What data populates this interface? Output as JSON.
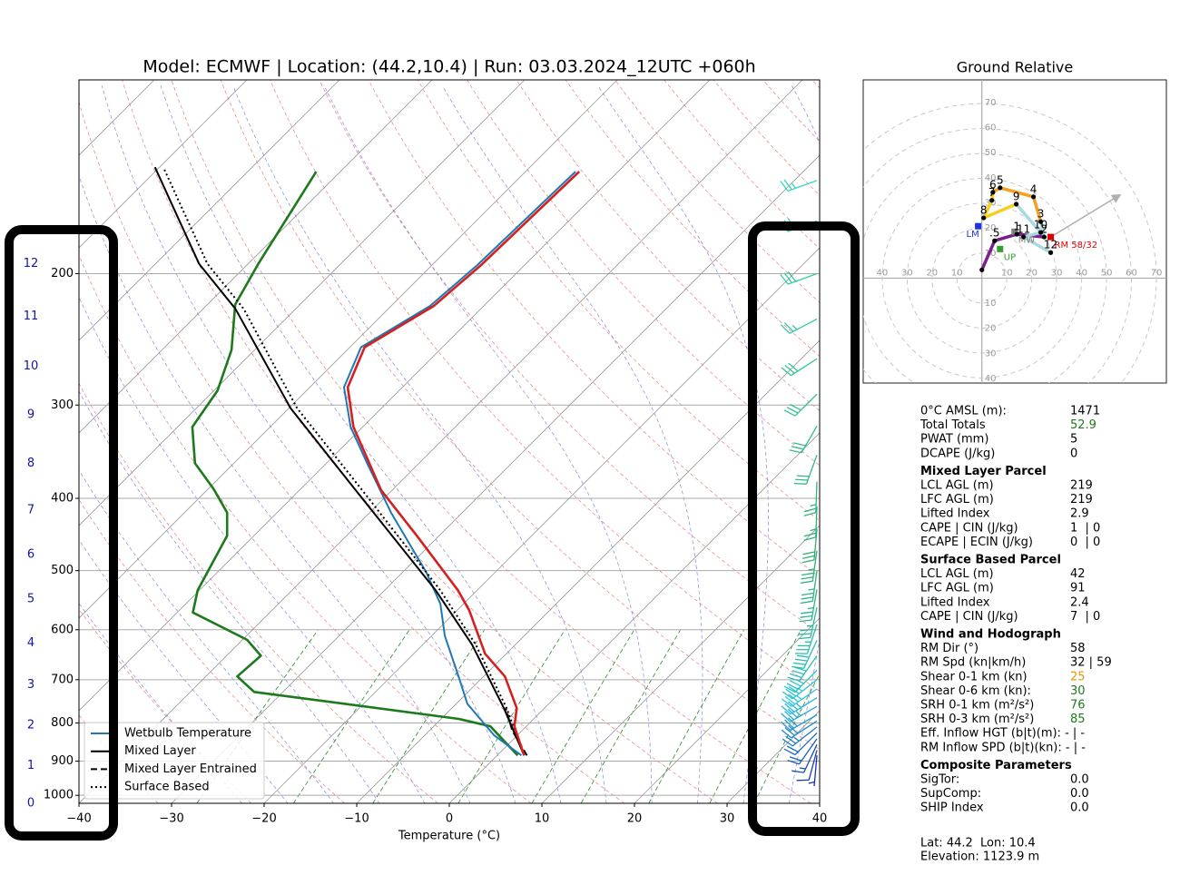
{
  "chart_data": [
    {
      "type": "skew-t",
      "title": "Model: ECMWF | Location: (44.2,10.4) | Run: 03.03.2024_12UTC +060h",
      "xlabel": "Temperature (°C)",
      "xlim": [
        -40,
        40
      ],
      "xticks": [
        {
          "value": -40,
          "label": "−40"
        },
        {
          "value": -30,
          "label": "−30"
        },
        {
          "value": -20,
          "label": "−20"
        },
        {
          "value": -10,
          "label": "−10"
        },
        0,
        10,
        20,
        30,
        40
      ],
      "ylim": [
        1025,
        110
      ],
      "yticks": [
        1000,
        900,
        800,
        700,
        600,
        500,
        400,
        300,
        200
      ],
      "log_scale_y": true,
      "skew_deg": 45,
      "grid": true,
      "legend": "lower left",
      "temperature": {
        "color": "#d42020",
        "pressure": [
          884,
          808,
          764,
          693,
          646,
          565,
          531,
          449,
          390,
          321,
          284,
          251,
          221,
          195,
          146
        ],
        "values": [
          2.9,
          -1.3,
          -3.0,
          -7.7,
          -12.3,
          -18.7,
          -22.1,
          -32.4,
          -41.2,
          -51.0,
          -55.9,
          -58.4,
          -55.4,
          -54.7,
          -54.2
        ]
      },
      "dewpoint": {
        "color": "#1c7a1c",
        "pressure": [
          884,
          808,
          790,
          727,
          693,
          650,
          619,
          569,
          531,
          449,
          418,
          388,
          359,
          321,
          287,
          253,
          220,
          194,
          146
        ],
        "values": [
          2.2,
          -3.9,
          -8.1,
          -33.1,
          -36.6,
          -36.3,
          -39.5,
          -48.3,
          -50.2,
          -52.9,
          -55.4,
          -59.5,
          -64.2,
          -68.4,
          -69.6,
          -72.5,
          -77.0,
          -78.9,
          -82.6
        ]
      },
      "series": [
        {
          "name": "Wetbulb Temperature",
          "color": "#1f77b4",
          "style": "solid",
          "pressure": [
            884,
            831,
            754,
            693,
            611,
            554,
            502,
            418,
            359,
            321,
            284,
            251,
            221,
            195,
            146
          ],
          "values": [
            2.6,
            -2.5,
            -8.8,
            -12.7,
            -18.6,
            -22.5,
            -27.5,
            -37.7,
            -45.6,
            -51.3,
            -56.3,
            -58.8,
            -55.8,
            -55.1,
            -54.6
          ]
        },
        {
          "name": "Mixed Layer",
          "color": "#000000",
          "style": "solid",
          "pressure": [
            884,
            764,
            628,
            531,
            401,
            303,
            223,
            194,
            144
          ],
          "values": [
            2.9,
            -4.4,
            -14.7,
            -24.5,
            -42.2,
            -59.8,
            -76.5,
            -85.3,
            -100.5
          ]
        },
        {
          "name": "Mixed Layer Entrained",
          "color": "#000000",
          "style": "dashed",
          "pressure": [
            884,
            820,
            764
          ],
          "values": [
            3.2,
            -1.0,
            -4.2
          ]
        },
        {
          "name": "Surface Based",
          "color": "#000000",
          "style": "dotted",
          "pressure": [
            884,
            764,
            628,
            531,
            401,
            303,
            223,
            194,
            144
          ],
          "values": [
            2.9,
            -4.1,
            -14.3,
            -24.0,
            -41.5,
            -59.1,
            -75.6,
            -84.4,
            -99.6
          ]
        }
      ],
      "height_labels": {
        "color": "#1414a8",
        "labels": [
          0,
          1,
          2,
          3,
          4,
          5,
          6,
          7,
          8,
          9,
          10,
          11,
          12
        ],
        "pressure": [
          1025,
          912,
          806,
          711,
          625,
          546,
          476,
          415,
          359,
          309,
          266,
          228,
          194
        ]
      },
      "wind_barbs": {
        "color_stops": [
          "#1430b0",
          "#2ac8dc",
          "#2fae6e",
          "#33d6b8"
        ],
        "pressure": [
          884,
          870,
          855,
          840,
          825,
          810,
          795,
          780,
          760,
          740,
          720,
          700,
          680,
          650,
          620,
          590,
          560,
          530,
          500,
          470,
          440,
          410,
          380,
          350,
          320,
          290,
          260,
          230,
          200,
          170,
          150
        ],
        "direction": [
          185,
          195,
          205,
          215,
          225,
          232,
          237,
          240,
          240,
          238,
          235,
          232,
          225,
          215,
          205,
          198,
          192,
          190,
          188,
          188,
          185,
          182,
          182,
          200,
          210,
          225,
          237,
          242,
          250,
          250,
          250
        ],
        "speed": [
          5,
          10,
          15,
          20,
          22,
          25,
          28,
          30,
          33,
          33,
          33,
          33,
          35,
          38,
          38,
          37,
          37,
          36,
          36,
          34,
          30,
          26,
          24,
          30,
          32,
          30,
          28,
          27,
          29,
          28,
          27
        ]
      }
    },
    {
      "type": "hodograph",
      "title": "Ground Relative",
      "xlim": [
        -47.6,
        74
      ],
      "ylim": [
        -41.8,
        79
      ],
      "ticks": [
        10,
        20,
        30,
        40,
        50,
        60,
        70
      ],
      "labels": [
        null,
        ".5",
        "1",
        "2",
        "3",
        "4",
        "5",
        "6",
        "7",
        "8",
        "9",
        "10",
        "11",
        "12"
      ],
      "u": [
        0,
        5.1,
        14,
        25,
        23.6,
        20.7,
        7.3,
        4.4,
        4,
        0.7,
        13.8,
        23.6,
        16.7,
        27.6
      ],
      "v": [
        3.3,
        14.9,
        17.5,
        16.4,
        22.5,
        32.4,
        36,
        34.2,
        31,
        24,
        29.5,
        18.2,
        16.4,
        10.2
      ],
      "segment_colors": [
        "#7b1f8f",
        "#7b1f8f",
        "#7b1f8f",
        "#a8d8e0",
        "#f5a020",
        "#f5a020",
        "#f5a020",
        "#f5d020",
        "#f5d020",
        "#f5d020",
        "#a8d8e0",
        "#a8d8e0",
        "#a8d8e0"
      ],
      "markers": [
        {
          "label": "RM 58/32",
          "u": 27.6,
          "v": 16.4,
          "color": "#e00000"
        },
        {
          "label": "LM",
          "u": -1.5,
          "v": 20.7,
          "color": "#2030e0"
        },
        {
          "label": "MW",
          "u": 13.1,
          "v": 18.5,
          "color": "#808080"
        },
        {
          "label": "UP",
          "u": 7.3,
          "v": 11.6,
          "color": "#30a030"
        }
      ],
      "arrow": {
        "u": [
          27.6,
          55.3
        ],
        "v": [
          16.4,
          33.1
        ],
        "color": "#b0b0b0"
      }
    }
  ],
  "parameters": [
    {
      "rows": [
        {
          "label": "0°C AMSL (m):",
          "value": "1471"
        },
        {
          "label": "Total Totals",
          "value": "52.9",
          "color": "#1c7a1c"
        },
        {
          "label": "PWAT (mm)",
          "value": "5"
        },
        {
          "label": "DCAPE (J/kg)",
          "value": "0"
        }
      ]
    },
    {
      "title": "Mixed Layer Parcel",
      "rows": [
        {
          "label": "LCL AGL (m)",
          "value": "219"
        },
        {
          "label": "LFC AGL (m)",
          "value": "219"
        },
        {
          "label": "Lifted Index",
          "value": "2.9"
        },
        {
          "label": "CAPE | CIN (J/kg)",
          "value": "1  | 0"
        },
        {
          "label": "ECAPE | ECIN (J/kg)",
          "value": "0  | 0"
        }
      ]
    },
    {
      "title": "Surface Based Parcel",
      "rows": [
        {
          "label": "LCL AGL (m)",
          "value": "42"
        },
        {
          "label": "LFC AGL (m)",
          "value": "91"
        },
        {
          "label": "Lifted Index",
          "value": "2.4"
        },
        {
          "label": "CAPE | CIN (J/kg)",
          "value": "7  | 0"
        }
      ]
    },
    {
      "title": "Wind and Hodograph",
      "rows": [
        {
          "label": "RM Dir (°)",
          "value": "58"
        },
        {
          "label": "RM Spd (kn|km/h)",
          "value": "32 | 59"
        },
        {
          "label": "Shear 0-1 km (kn)",
          "value": "25",
          "color": "#e69500"
        },
        {
          "label": "Shear 0-6 km (kn):",
          "value": "30",
          "color": "#1c7a1c"
        },
        {
          "label": "SRH 0-1 km (m²/s²)",
          "value": "76",
          "color": "#1c7a1c"
        },
        {
          "label": "SRH 0-3 km (m²/s²)",
          "value": "85",
          "color": "#1c7a1c"
        },
        {
          "label": "Eff. Inflow HGT (b|t)(m): - | -"
        },
        {
          "label": "RM Inflow SPD (b|t)(kn): - | -"
        }
      ]
    },
    {
      "title": "Composite Parameters",
      "rows": [
        {
          "label": "SigTor:",
          "value": "0.0"
        },
        {
          "label": "SupComp:",
          "value": "0.0"
        },
        {
          "label": "SHIP Index",
          "value": "0.0"
        }
      ]
    }
  ],
  "location": {
    "lat_lon": "Lat: 44.2  Lon: 10.4",
    "elevation": "Elevation: 1123.9 m"
  }
}
